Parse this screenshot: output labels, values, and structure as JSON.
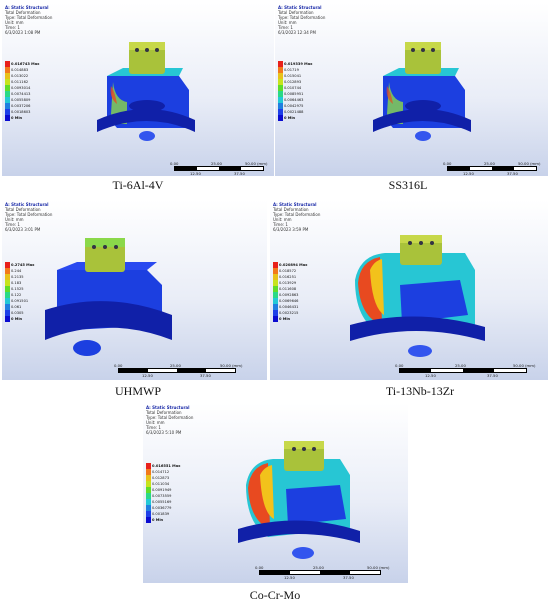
{
  "panels": [
    {
      "id": "ti6al4v",
      "caption": "Ti-6Al-4V",
      "header": {
        "title": "A: Static Structural",
        "type1": "Total Deformation",
        "type2": "Type: Total Deformation",
        "unit": "Unit: mm",
        "time": "Time: 1",
        "date": "6/3/2023 1:08 PM"
      },
      "legend": [
        "0.016743 Max",
        "0.014883",
        "0.013022",
        "0.011162",
        "0.0093014",
        "0.0074413",
        "0.0055809",
        "0.0037206",
        "0.0018603",
        "0 Min"
      ],
      "scale": {
        "top": [
          "0.00",
          "25.00",
          "50.00 (mm)"
        ],
        "bottom": [
          "12.50",
          "37.50"
        ]
      }
    },
    {
      "id": "ss316l",
      "caption": "SS316L",
      "header": {
        "title": "A: Static Structural",
        "type1": "Total Deformation",
        "type2": "Type: Total Deformation",
        "unit": "Unit: mm",
        "time": "Time: 1",
        "date": "6/3/2023 12:34 PM"
      },
      "legend": [
        "0.019339 Max",
        "0.01719",
        "0.015041",
        "0.012893",
        "0.010744",
        "0.0085951",
        "0.0064463",
        "0.0042975",
        "0.0021488",
        "0 Min"
      ],
      "scale": {
        "top": [
          "0.00",
          "25.00",
          "50.00 (mm)"
        ],
        "bottom": [
          "12.50",
          "37.50"
        ]
      }
    },
    {
      "id": "uhmwp",
      "caption": "UHMWP",
      "header": {
        "title": "A: Static Structural",
        "type1": "Total Deformation",
        "type2": "Type: Total Deformation",
        "unit": "Unit: mm",
        "time": "Time: 1",
        "date": "6/3/2023 3:01 PM"
      },
      "legend": [
        "0.2745 Max",
        "0.244",
        "0.2135",
        "0.183",
        "0.1525",
        "0.122",
        "0.091501",
        "0.061",
        "0.0305",
        "0 Min"
      ],
      "scale": {
        "top": [
          "0.00",
          "25.00",
          "50.00 (mm)"
        ],
        "bottom": [
          "12.50",
          "37.50"
        ]
      }
    },
    {
      "id": "ti13nb13zr",
      "caption": "Ti-13Nb-13Zr",
      "header": {
        "title": "A: Static Structural",
        "type1": "Total Deformation",
        "type2": "Type: Total Deformation",
        "unit": "Unit: mm",
        "time": "Time: 1",
        "date": "6/3/2023 3:59 PM"
      },
      "legend": [
        "0.020894 Max",
        "0.018572",
        "0.016251",
        "0.013929",
        "0.011608",
        "0.0092863",
        "0.0069646",
        "0.0046431",
        "0.0023215",
        "0 Min"
      ],
      "scale": {
        "top": [
          "0.00",
          "25.00",
          "50.00 (mm)"
        ],
        "bottom": [
          "12.50",
          "37.50"
        ]
      }
    },
    {
      "id": "cocrmo",
      "caption": "Co-Cr-Mo",
      "header": {
        "title": "A: Static Structural",
        "type1": "Total Deformation",
        "type2": "Type: Total Deformation",
        "unit": "Unit: mm",
        "time": "Time: 1",
        "date": "6/3/2023 5:10 PM"
      },
      "legend": [
        "0.016551 Max",
        "0.014712",
        "0.012873",
        "0.011034",
        "0.0091949",
        "0.0073559",
        "0.0055169",
        "0.0036779",
        "0.001839",
        "0 Min"
      ],
      "scale": {
        "top": [
          "0.00",
          "25.00",
          "50.00 (mm)"
        ],
        "bottom": [
          "12.50",
          "37.50"
        ]
      }
    }
  ],
  "colors": {
    "legend_scale": [
      "#e8201b",
      "#f2791b",
      "#e8c21a",
      "#c7e31d",
      "#5fdd2a",
      "#29d987",
      "#22c9d6",
      "#1f7fe0",
      "#1d3fe8",
      "#0a0ad0"
    ],
    "model_body": "#1c3fe0",
    "model_dark": "#1020a8",
    "model_mid": "#27c6d4",
    "model_green": "#8bd84a",
    "model_hot": "#e84a20",
    "model_top": "#a9c23a"
  }
}
